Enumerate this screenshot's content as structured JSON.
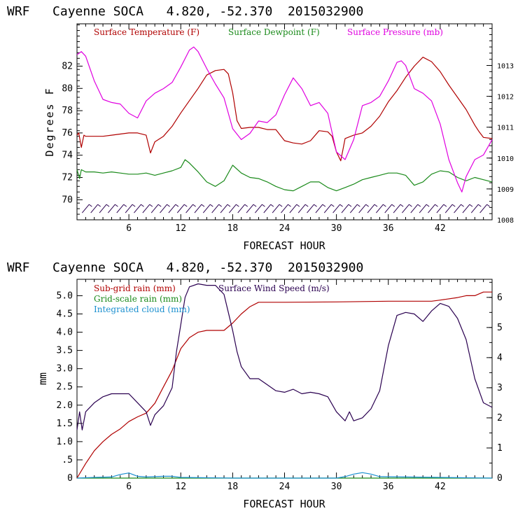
{
  "chart_data": [
    {
      "type": "line",
      "title": "WRF   Cayenne SOCA   4.820, -52.370  2015032900",
      "xlabel": "FORECAST HOUR",
      "ylabel": "Degrees F",
      "xlim": [
        0,
        48
      ],
      "ylim": [
        68.2,
        85.8
      ],
      "x_ticks": [
        6,
        12,
        18,
        24,
        30,
        36,
        42
      ],
      "y_ticks": [
        70,
        72,
        74,
        76,
        78,
        80,
        82
      ],
      "y2label": "Surface Pressure (mb)",
      "y2lim": [
        1008,
        1014.35
      ],
      "y2_ticks": [
        1008,
        1009,
        1010,
        1011,
        1012,
        1013
      ],
      "wind_barbs": "row of wind barbs along 69.2 °F",
      "series": [
        {
          "name": "Surface Temperature (F)",
          "color": "#b00000",
          "axis": "left",
          "x": [
            0,
            0.2,
            0.5,
            0.8,
            1,
            2,
            3,
            4,
            5,
            6,
            7,
            8,
            8.5,
            9,
            10,
            11,
            12,
            13,
            14,
            15,
            16,
            17,
            17.5,
            18,
            18.5,
            19,
            20,
            21,
            22,
            23,
            24,
            25,
            26,
            27,
            28,
            29,
            29.5,
            30,
            30.5,
            31,
            32,
            33,
            34,
            35,
            36,
            37,
            38,
            39,
            40,
            41,
            42,
            43,
            44,
            45,
            46,
            46.5,
            47,
            48
          ],
          "y": [
            75.8,
            76,
            74.7,
            75.8,
            75.7,
            75.7,
            75.7,
            75.8,
            75.9,
            76,
            76,
            75.8,
            74.2,
            75.2,
            75.7,
            76.6,
            77.8,
            78.9,
            80,
            81.2,
            81.6,
            81.7,
            81.3,
            79.6,
            77.1,
            76.4,
            76.5,
            76.5,
            76.3,
            76.3,
            75.3,
            75.1,
            75,
            75.3,
            76.2,
            76.1,
            75.7,
            74.3,
            73.5,
            75.5,
            75.8,
            76,
            76.6,
            77.5,
            78.8,
            79.8,
            81,
            82,
            82.8,
            82.4,
            81.5,
            80.3,
            79.2,
            78.1,
            76.7,
            76.1,
            75.6,
            75.5
          ]
        },
        {
          "name": "Surface Dewpoint (F)",
          "color": "#1a8a1a",
          "axis": "left",
          "x": [
            0,
            0.3,
            0.5,
            1,
            2,
            3,
            4,
            5,
            6,
            7,
            8,
            9,
            10,
            11,
            12,
            12.5,
            13,
            14,
            15,
            16,
            17,
            18,
            19,
            20,
            21,
            22,
            23,
            24,
            25,
            26,
            27,
            28,
            29,
            30,
            31,
            32,
            33,
            34,
            35,
            36,
            37,
            38,
            39,
            40,
            41,
            42,
            43,
            44,
            45,
            46,
            47,
            48
          ],
          "y": [
            72.7,
            71.9,
            72.7,
            72.5,
            72.5,
            72.4,
            72.5,
            72.4,
            72.3,
            72.3,
            72.4,
            72.2,
            72.4,
            72.6,
            72.9,
            73.6,
            73.3,
            72.5,
            71.6,
            71.2,
            71.7,
            73.1,
            72.4,
            72.0,
            71.9,
            71.6,
            71.2,
            70.9,
            70.8,
            71.2,
            71.6,
            71.6,
            71.1,
            70.8,
            71.1,
            71.4,
            71.8,
            72.0,
            72.2,
            72.4,
            72.4,
            72.2,
            71.3,
            71.6,
            72.3,
            72.6,
            72.5,
            72.0,
            71.7,
            72.0,
            71.8,
            71.6
          ]
        },
        {
          "name": "Surface Pressure (mb)",
          "color": "#e000e0",
          "axis": "right",
          "x": [
            0,
            0.5,
            1,
            2,
            3,
            4,
            5,
            6,
            7,
            8,
            9,
            10,
            11,
            12,
            13,
            13.5,
            14,
            15,
            16,
            17,
            18,
            19,
            20,
            21,
            22,
            23,
            24,
            25,
            26,
            27,
            28,
            29,
            30,
            31,
            32,
            33,
            34,
            35,
            36,
            37,
            37.5,
            38,
            39,
            40,
            41,
            42,
            43,
            44,
            44.5,
            45,
            46,
            47,
            48
          ],
          "y": [
            1013.35,
            1013.45,
            1013.3,
            1012.5,
            1011.9,
            1011.8,
            1011.75,
            1011.45,
            1011.3,
            1011.85,
            1012.1,
            1012.25,
            1012.45,
            1012.95,
            1013.5,
            1013.6,
            1013.45,
            1012.9,
            1012.4,
            1011.95,
            1010.95,
            1010.6,
            1010.8,
            1011.2,
            1011.15,
            1011.4,
            1012.05,
            1012.6,
            1012.25,
            1011.7,
            1011.8,
            1011.45,
            1010.2,
            1009.95,
            1010.6,
            1011.7,
            1011.8,
            1012.0,
            1012.5,
            1013.1,
            1013.15,
            1013.0,
            1012.25,
            1012.1,
            1011.85,
            1011.1,
            1009.95,
            1009.2,
            1008.9,
            1009.4,
            1009.95,
            1010.1,
            1010.6
          ]
        }
      ]
    },
    {
      "type": "line",
      "title": "WRF   Cayenne SOCA   4.820, -52.370  2015032900",
      "xlabel": "FORECAST HOUR",
      "ylabel": "mm",
      "xlim": [
        0,
        48
      ],
      "ylim": [
        0,
        5.45
      ],
      "x_ticks": [
        6,
        12,
        18,
        24,
        30,
        36,
        42
      ],
      "y_ticks": [
        0,
        0.5,
        1.0,
        1.5,
        2.0,
        2.5,
        3.0,
        3.5,
        4.0,
        4.5,
        5.0
      ],
      "y_tick_labels": [
        "0",
        ".5",
        "1.0",
        "1.5",
        "2.0",
        "2.5",
        "3.0",
        "3.5",
        "4.0",
        "4.5",
        "5.0"
      ],
      "y2label": "Surface Wind Speed (m/s)",
      "y2lim": [
        0,
        6.6
      ],
      "y2_ticks": [
        0,
        1,
        2,
        3,
        4,
        5,
        6
      ],
      "series": [
        {
          "name": "Sub-grid rain (mm)",
          "color": "#b00000",
          "axis": "left",
          "x": [
            0,
            1,
            2,
            3,
            4,
            5,
            6,
            7,
            8,
            9,
            10,
            11,
            12,
            13,
            14,
            15,
            16,
            17,
            18,
            19,
            20,
            21,
            24,
            30,
            36,
            41,
            42,
            44,
            45,
            46,
            47,
            48
          ],
          "y": [
            0.0,
            0.4,
            0.75,
            1.0,
            1.2,
            1.35,
            1.55,
            1.68,
            1.78,
            2.05,
            2.5,
            2.95,
            3.55,
            3.85,
            4.0,
            4.05,
            4.05,
            4.05,
            4.25,
            4.5,
            4.7,
            4.82,
            4.82,
            4.83,
            4.85,
            4.85,
            4.88,
            4.95,
            5.0,
            5.0,
            5.1,
            5.1
          ]
        },
        {
          "name": "Grid-scale rain (mm)",
          "color": "#1a8a1a",
          "axis": "left",
          "x": [
            0,
            48
          ],
          "y": [
            0,
            0
          ]
        },
        {
          "name": "Integrated cloud (mm)",
          "color": "#1a8fcf",
          "axis": "left",
          "x": [
            0,
            2,
            4,
            5,
            6,
            7,
            8,
            10,
            11,
            12,
            18,
            30,
            31,
            32,
            33,
            34,
            35,
            48
          ],
          "y": [
            0.0,
            0.02,
            0.03,
            0.1,
            0.14,
            0.05,
            0.03,
            0.05,
            0.05,
            0.02,
            0.0,
            0.0,
            0.04,
            0.11,
            0.15,
            0.11,
            0.04,
            0.0
          ]
        },
        {
          "name": "Surface Wind Speed (m/s)",
          "color": "#2a0050",
          "axis": "right",
          "x": [
            0,
            0.3,
            0.6,
            1,
            2,
            3,
            4,
            5,
            6,
            7,
            8,
            8.5,
            9,
            10,
            11,
            11.5,
            12,
            12.5,
            13,
            14,
            15,
            16,
            17,
            17.5,
            18,
            18.5,
            19,
            20,
            21,
            22,
            23,
            24,
            25,
            26,
            27,
            28,
            29,
            30,
            31,
            31.5,
            32,
            33,
            34,
            35,
            36,
            37,
            38,
            39,
            40,
            41,
            42,
            43,
            44,
            45,
            46,
            47,
            48
          ],
          "y": [
            1.6,
            2.2,
            1.6,
            2.2,
            2.5,
            2.7,
            2.8,
            2.8,
            2.8,
            2.5,
            2.2,
            1.75,
            2.1,
            2.4,
            3.0,
            4.2,
            5.1,
            6.0,
            6.35,
            6.45,
            6.4,
            6.4,
            6.1,
            5.5,
            4.9,
            4.2,
            3.7,
            3.3,
            3.3,
            3.1,
            2.9,
            2.85,
            2.95,
            2.8,
            2.85,
            2.8,
            2.7,
            2.2,
            1.9,
            2.2,
            1.9,
            2.0,
            2.3,
            2.9,
            4.4,
            5.4,
            5.5,
            5.45,
            5.2,
            5.55,
            5.8,
            5.7,
            5.3,
            4.6,
            3.3,
            2.5,
            2.35
          ]
        }
      ]
    }
  ]
}
